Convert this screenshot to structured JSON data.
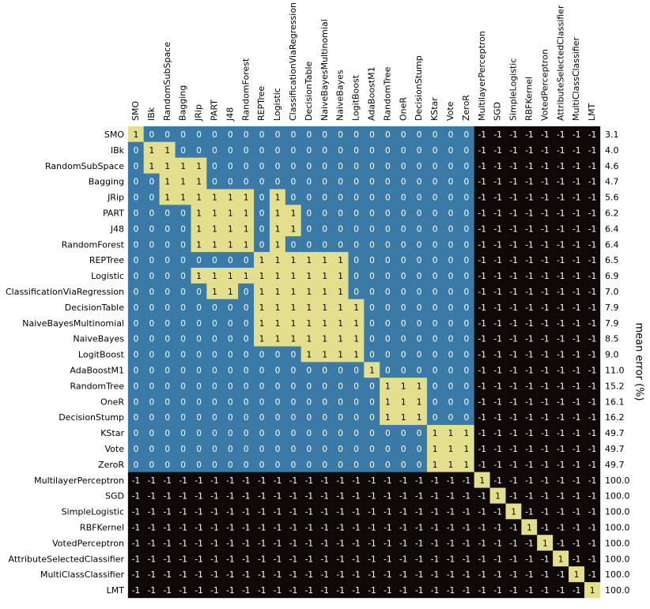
{
  "chart_data": {
    "type": "heatmap",
    "categories": [
      "SMO",
      "IBk",
      "RandomSubSpace",
      "Bagging",
      "JRip",
      "PART",
      "J48",
      "RandomForest",
      "REPTree",
      "Logistic",
      "ClassificationViaRegression",
      "DecisionTable",
      "NaiveBayesMultinomial",
      "NaiveBayes",
      "LogitBoost",
      "AdaBoostM1",
      "RandomTree",
      "OneR",
      "DecisionStump",
      "KStar",
      "Vote",
      "ZeroR",
      "MultilayerPerceptron",
      "SGD",
      "SimpleLogistic",
      "RBFKernel",
      "VotedPerceptron",
      "AttributeSelectedClassifier",
      "MultiClassClassifier",
      "LMT"
    ],
    "colors": {
      "-1": "#0f0808",
      "0": "#3a7aa6",
      "1": "#e4df8c"
    },
    "values": [
      [
        1,
        0,
        0,
        0,
        0,
        0,
        0,
        0,
        0,
        0,
        0,
        0,
        0,
        0,
        0,
        0,
        0,
        0,
        0,
        0,
        0,
        0,
        -1,
        -1,
        -1,
        -1,
        -1,
        -1,
        -1,
        -1
      ],
      [
        0,
        1,
        1,
        0,
        0,
        0,
        0,
        0,
        0,
        0,
        0,
        0,
        0,
        0,
        0,
        0,
        0,
        0,
        0,
        0,
        0,
        0,
        -1,
        -1,
        -1,
        -1,
        -1,
        -1,
        -1,
        -1
      ],
      [
        0,
        1,
        1,
        1,
        1,
        0,
        0,
        0,
        0,
        0,
        0,
        0,
        0,
        0,
        0,
        0,
        0,
        0,
        0,
        0,
        0,
        0,
        -1,
        -1,
        -1,
        -1,
        -1,
        -1,
        -1,
        -1
      ],
      [
        0,
        0,
        1,
        1,
        1,
        0,
        0,
        0,
        0,
        0,
        0,
        0,
        0,
        0,
        0,
        0,
        0,
        0,
        0,
        0,
        0,
        0,
        -1,
        -1,
        -1,
        -1,
        -1,
        -1,
        -1,
        -1
      ],
      [
        0,
        0,
        1,
        1,
        1,
        1,
        1,
        1,
        0,
        1,
        0,
        0,
        0,
        0,
        0,
        0,
        0,
        0,
        0,
        0,
        0,
        0,
        -1,
        -1,
        -1,
        -1,
        -1,
        -1,
        -1,
        -1
      ],
      [
        0,
        0,
        0,
        0,
        1,
        1,
        1,
        1,
        0,
        1,
        1,
        0,
        0,
        0,
        0,
        0,
        0,
        0,
        0,
        0,
        0,
        0,
        -1,
        -1,
        -1,
        -1,
        -1,
        -1,
        -1,
        -1
      ],
      [
        0,
        0,
        0,
        0,
        1,
        1,
        1,
        1,
        0,
        1,
        1,
        0,
        0,
        0,
        0,
        0,
        0,
        0,
        0,
        0,
        0,
        0,
        -1,
        -1,
        -1,
        -1,
        -1,
        -1,
        -1,
        -1
      ],
      [
        0,
        0,
        0,
        0,
        1,
        1,
        1,
        1,
        0,
        1,
        0,
        0,
        0,
        0,
        0,
        0,
        0,
        0,
        0,
        0,
        0,
        0,
        -1,
        -1,
        -1,
        -1,
        -1,
        -1,
        -1,
        -1
      ],
      [
        0,
        0,
        0,
        0,
        0,
        0,
        0,
        0,
        1,
        1,
        1,
        1,
        1,
        1,
        0,
        0,
        0,
        0,
        0,
        0,
        0,
        0,
        -1,
        -1,
        -1,
        -1,
        -1,
        -1,
        -1,
        -1
      ],
      [
        0,
        0,
        0,
        0,
        1,
        1,
        1,
        1,
        1,
        1,
        1,
        1,
        1,
        1,
        0,
        0,
        0,
        0,
        0,
        0,
        0,
        0,
        -1,
        -1,
        -1,
        -1,
        -1,
        -1,
        -1,
        -1
      ],
      [
        0,
        0,
        0,
        0,
        0,
        1,
        1,
        0,
        1,
        1,
        1,
        1,
        1,
        1,
        0,
        0,
        0,
        0,
        0,
        0,
        0,
        0,
        -1,
        -1,
        -1,
        -1,
        -1,
        -1,
        -1,
        -1
      ],
      [
        0,
        0,
        0,
        0,
        0,
        0,
        0,
        0,
        1,
        1,
        1,
        1,
        1,
        1,
        1,
        0,
        0,
        0,
        0,
        0,
        0,
        0,
        -1,
        -1,
        -1,
        -1,
        -1,
        -1,
        -1,
        -1
      ],
      [
        0,
        0,
        0,
        0,
        0,
        0,
        0,
        0,
        1,
        1,
        1,
        1,
        1,
        1,
        1,
        0,
        0,
        0,
        0,
        0,
        0,
        0,
        -1,
        -1,
        -1,
        -1,
        -1,
        -1,
        -1,
        -1
      ],
      [
        0,
        0,
        0,
        0,
        0,
        0,
        0,
        0,
        1,
        1,
        1,
        1,
        1,
        1,
        1,
        0,
        0,
        0,
        0,
        0,
        0,
        0,
        -1,
        -1,
        -1,
        -1,
        -1,
        -1,
        -1,
        -1
      ],
      [
        0,
        0,
        0,
        0,
        0,
        0,
        0,
        0,
        0,
        0,
        0,
        1,
        1,
        1,
        1,
        0,
        0,
        0,
        0,
        0,
        0,
        0,
        -1,
        -1,
        -1,
        -1,
        -1,
        -1,
        -1,
        -1
      ],
      [
        0,
        0,
        0,
        0,
        0,
        0,
        0,
        0,
        0,
        0,
        0,
        0,
        0,
        0,
        0,
        1,
        0,
        0,
        0,
        0,
        0,
        0,
        -1,
        -1,
        -1,
        -1,
        -1,
        -1,
        -1,
        -1
      ],
      [
        0,
        0,
        0,
        0,
        0,
        0,
        0,
        0,
        0,
        0,
        0,
        0,
        0,
        0,
        0,
        0,
        1,
        1,
        1,
        0,
        0,
        0,
        -1,
        -1,
        -1,
        -1,
        -1,
        -1,
        -1,
        -1
      ],
      [
        0,
        0,
        0,
        0,
        0,
        0,
        0,
        0,
        0,
        0,
        0,
        0,
        0,
        0,
        0,
        0,
        1,
        1,
        1,
        0,
        0,
        0,
        -1,
        -1,
        -1,
        -1,
        -1,
        -1,
        -1,
        -1
      ],
      [
        0,
        0,
        0,
        0,
        0,
        0,
        0,
        0,
        0,
        0,
        0,
        0,
        0,
        0,
        0,
        0,
        1,
        1,
        1,
        0,
        0,
        0,
        -1,
        -1,
        -1,
        -1,
        -1,
        -1,
        -1,
        -1
      ],
      [
        0,
        0,
        0,
        0,
        0,
        0,
        0,
        0,
        0,
        0,
        0,
        0,
        0,
        0,
        0,
        0,
        0,
        0,
        0,
        1,
        1,
        1,
        -1,
        -1,
        -1,
        -1,
        -1,
        -1,
        -1,
        -1
      ],
      [
        0,
        0,
        0,
        0,
        0,
        0,
        0,
        0,
        0,
        0,
        0,
        0,
        0,
        0,
        0,
        0,
        0,
        0,
        0,
        1,
        1,
        1,
        -1,
        -1,
        -1,
        -1,
        -1,
        -1,
        -1,
        -1
      ],
      [
        0,
        0,
        0,
        0,
        0,
        0,
        0,
        0,
        0,
        0,
        0,
        0,
        0,
        0,
        0,
        0,
        0,
        0,
        0,
        1,
        1,
        1,
        -1,
        -1,
        -1,
        -1,
        -1,
        -1,
        -1,
        -1
      ],
      [
        -1,
        -1,
        -1,
        -1,
        -1,
        -1,
        -1,
        -1,
        -1,
        -1,
        -1,
        -1,
        -1,
        -1,
        -1,
        -1,
        -1,
        -1,
        -1,
        -1,
        -1,
        -1,
        1,
        -1,
        -1,
        -1,
        -1,
        -1,
        -1,
        -1
      ],
      [
        -1,
        -1,
        -1,
        -1,
        -1,
        -1,
        -1,
        -1,
        -1,
        -1,
        -1,
        -1,
        -1,
        -1,
        -1,
        -1,
        -1,
        -1,
        -1,
        -1,
        -1,
        -1,
        -1,
        1,
        -1,
        -1,
        -1,
        -1,
        -1,
        -1
      ],
      [
        -1,
        -1,
        -1,
        -1,
        -1,
        -1,
        -1,
        -1,
        -1,
        -1,
        -1,
        -1,
        -1,
        -1,
        -1,
        -1,
        -1,
        -1,
        -1,
        -1,
        -1,
        -1,
        -1,
        -1,
        1,
        -1,
        -1,
        -1,
        -1,
        -1
      ],
      [
        -1,
        -1,
        -1,
        -1,
        -1,
        -1,
        -1,
        -1,
        -1,
        -1,
        -1,
        -1,
        -1,
        -1,
        -1,
        -1,
        -1,
        -1,
        -1,
        -1,
        -1,
        -1,
        -1,
        -1,
        -1,
        1,
        -1,
        -1,
        -1,
        -1
      ],
      [
        -1,
        -1,
        -1,
        -1,
        -1,
        -1,
        -1,
        -1,
        -1,
        -1,
        -1,
        -1,
        -1,
        -1,
        -1,
        -1,
        -1,
        -1,
        -1,
        -1,
        -1,
        -1,
        -1,
        -1,
        -1,
        -1,
        1,
        -1,
        -1,
        -1
      ],
      [
        -1,
        -1,
        -1,
        -1,
        -1,
        -1,
        -1,
        -1,
        -1,
        -1,
        -1,
        -1,
        -1,
        -1,
        -1,
        -1,
        -1,
        -1,
        -1,
        -1,
        -1,
        -1,
        -1,
        -1,
        -1,
        -1,
        -1,
        1,
        -1,
        -1
      ],
      [
        -1,
        -1,
        -1,
        -1,
        -1,
        -1,
        -1,
        -1,
        -1,
        -1,
        -1,
        -1,
        -1,
        -1,
        -1,
        -1,
        -1,
        -1,
        -1,
        -1,
        -1,
        -1,
        -1,
        -1,
        -1,
        -1,
        -1,
        -1,
        1,
        -1
      ],
      [
        -1,
        -1,
        -1,
        -1,
        -1,
        -1,
        -1,
        -1,
        -1,
        -1,
        -1,
        -1,
        -1,
        -1,
        -1,
        -1,
        -1,
        -1,
        -1,
        -1,
        -1,
        -1,
        -1,
        -1,
        -1,
        -1,
        -1,
        -1,
        -1,
        1
      ]
    ],
    "mean_error": {
      "label": "mean error (%)",
      "values": [
        3.1,
        4.0,
        4.6,
        4.7,
        5.6,
        6.2,
        6.4,
        6.4,
        6.5,
        6.9,
        7.0,
        7.9,
        7.9,
        8.5,
        9.0,
        11.0,
        15.2,
        16.1,
        16.2,
        49.7,
        49.7,
        49.7,
        100.0,
        100.0,
        100.0,
        100.0,
        100.0,
        100.0,
        100.0,
        100.0
      ],
      "value_labels": [
        "3.1",
        "4.0",
        "4.6",
        "4.7",
        "5.6",
        "6.2",
        "6.4",
        "6.4",
        "6.5",
        "6.9",
        "7.0",
        "7.9",
        "7.9",
        "8.5",
        "9.0",
        "11.0",
        "15.2",
        "16.1",
        "16.2",
        "49.7",
        "49.7",
        "49.7",
        "100.0",
        "100.0",
        "100.0",
        "100.0",
        "100.0",
        "100.0",
        "100.0",
        "100.0"
      ]
    }
  }
}
